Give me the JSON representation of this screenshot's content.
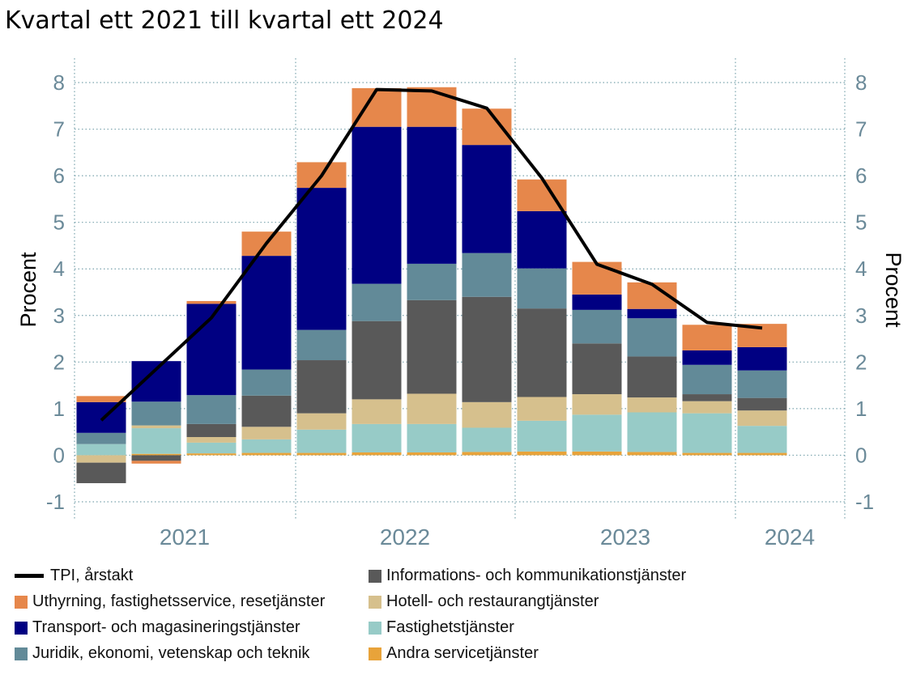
{
  "title": "Kvartal ett 2021 till kvartal ett 2024",
  "chart_data": {
    "type": "bar",
    "stacked": true,
    "categories": [
      "2021 Q1",
      "2021 Q2",
      "2021 Q3",
      "2021 Q4",
      "2022 Q1",
      "2022 Q2",
      "2022 Q3",
      "2022 Q4",
      "2023 Q1",
      "2023 Q2",
      "2023 Q3",
      "2023 Q4",
      "2024 Q1"
    ],
    "year_labels": [
      "2021",
      "2022",
      "2023",
      "2024"
    ],
    "ylabel_left": "Procent",
    "ylabel_right": "Procent",
    "ylim": [
      -1,
      8
    ],
    "yticks": [
      "-1",
      "0",
      "1",
      "2",
      "3",
      "4",
      "5",
      "6",
      "7",
      "8"
    ],
    "grid": true,
    "legend_position": "bottom",
    "series": [
      {
        "name": "Andra servicetjänster",
        "color": "#e8a33a",
        "values": [
          0.0,
          0.03,
          0.04,
          0.05,
          0.05,
          0.06,
          0.06,
          0.07,
          0.08,
          0.08,
          0.07,
          0.05,
          0.05
        ]
      },
      {
        "name": "Fastighetstjänster",
        "color": "#97cbc7",
        "values": [
          0.24,
          0.55,
          0.23,
          0.29,
          0.5,
          0.61,
          0.61,
          0.52,
          0.66,
          0.79,
          0.85,
          0.85,
          0.58
        ]
      },
      {
        "name": "Hotell- och restaurangtjänster",
        "color": "#d6c08d",
        "values": [
          -0.16,
          0.06,
          0.12,
          0.27,
          0.35,
          0.53,
          0.65,
          0.55,
          0.51,
          0.44,
          0.32,
          0.26,
          0.33
        ]
      },
      {
        "name": "Informations- och kommunikationstjänster",
        "color": "#595959",
        "values": [
          -0.44,
          -0.12,
          0.28,
          0.67,
          1.14,
          1.68,
          2.01,
          2.26,
          1.9,
          1.09,
          0.88,
          0.15,
          0.27
        ]
      },
      {
        "name": "Juridik, ekonomi, vetenskap och teknik",
        "color": "#628a98",
        "values": [
          0.24,
          0.51,
          0.62,
          0.56,
          0.65,
          0.8,
          0.78,
          0.94,
          0.86,
          0.72,
          0.82,
          0.63,
          0.59
        ]
      },
      {
        "name": "Transport- och magasineringstjänster",
        "color": "#000082",
        "values": [
          0.66,
          0.87,
          1.96,
          2.44,
          3.05,
          3.37,
          2.94,
          2.32,
          1.23,
          0.33,
          0.2,
          0.31,
          0.5
        ]
      },
      {
        "name": "Uthyrning, fastighetsservice, resetjänster",
        "color": "#e6874b",
        "values": [
          0.13,
          -0.06,
          0.06,
          0.52,
          0.55,
          0.83,
          0.85,
          0.78,
          0.68,
          0.7,
          0.57,
          0.55,
          0.5
        ]
      }
    ],
    "line": {
      "name": "TPI, årstakt",
      "color": "#000000",
      "values": [
        0.75,
        1.85,
        2.95,
        4.55,
        6.0,
        7.85,
        7.82,
        7.45,
        5.95,
        4.1,
        3.67,
        2.85,
        2.73
      ]
    }
  },
  "legend": {
    "left": [
      {
        "label": "TPI, årstakt",
        "kind": "line",
        "color": "#000000"
      },
      {
        "label": "Uthyrning, fastighetsservice, resetjänster",
        "kind": "box",
        "color": "#e6874b"
      },
      {
        "label": "Transport- och magasineringstjänster",
        "kind": "box",
        "color": "#000082"
      },
      {
        "label": "Juridik, ekonomi, vetenskap och teknik",
        "kind": "box",
        "color": "#628a98"
      }
    ],
    "right": [
      {
        "label": "Informations- och kommunikationstjänster",
        "kind": "box",
        "color": "#595959"
      },
      {
        "label": "Hotell- och restaurangtjänster",
        "kind": "box",
        "color": "#d6c08d"
      },
      {
        "label": "Fastighetstjänster",
        "kind": "box",
        "color": "#97cbc7"
      },
      {
        "label": "Andra servicetjänster",
        "kind": "box",
        "color": "#e8a33a"
      }
    ]
  }
}
